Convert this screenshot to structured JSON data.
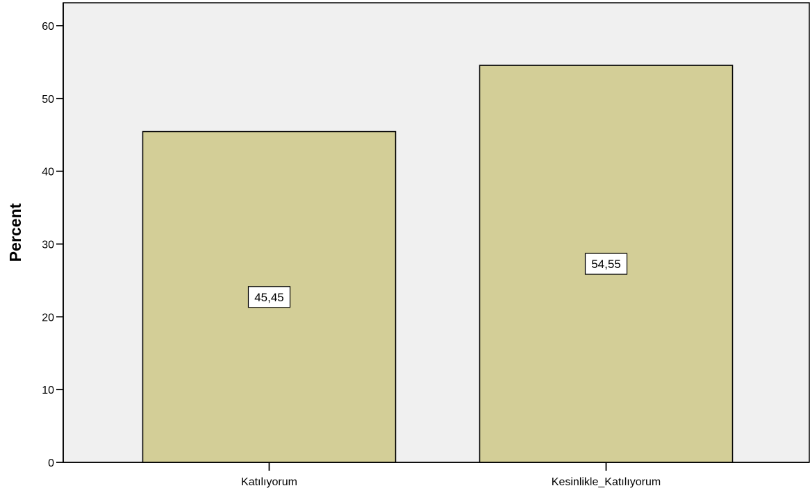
{
  "chart_data": {
    "type": "bar",
    "categories": [
      "Katılıyorum",
      "Kesinlikle_Katılıyorum"
    ],
    "values": [
      45.45,
      54.55
    ],
    "data_labels": [
      "45,45",
      "54,55"
    ],
    "ylabel": "Percent",
    "xlabel": "",
    "ylim": [
      0,
      60
    ],
    "yticks": [
      0,
      10,
      20,
      30,
      40,
      50,
      60
    ],
    "grid": false,
    "legend": "none",
    "colors": {
      "bar_fill": "#d3ce97",
      "bar_stroke": "#000000",
      "plot_background": "#f0f0f0",
      "axis": "#000000",
      "label_box_fill": "#ffffff"
    }
  }
}
